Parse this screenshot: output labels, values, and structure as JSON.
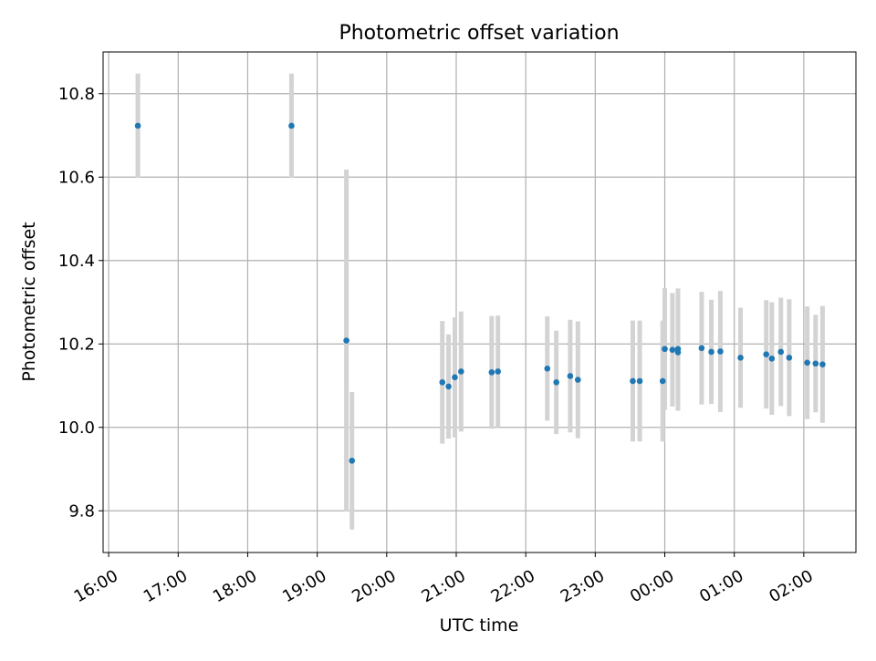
{
  "chart_data": {
    "type": "scatter",
    "title": "Photometric offset variation",
    "xlabel": "UTC time",
    "ylabel": "Photometric offset",
    "ylim": [
      9.7,
      10.9
    ],
    "xlim": [
      -0.08,
      10.75
    ],
    "x_unit": "hours after 16:00 UTC",
    "grid": true,
    "x_ticks": [
      {
        "x": 0,
        "label": "16:00"
      },
      {
        "x": 1,
        "label": "17:00"
      },
      {
        "x": 2,
        "label": "18:00"
      },
      {
        "x": 3,
        "label": "19:00"
      },
      {
        "x": 4,
        "label": "20:00"
      },
      {
        "x": 5,
        "label": "21:00"
      },
      {
        "x": 6,
        "label": "22:00"
      },
      {
        "x": 7,
        "label": "23:00"
      },
      {
        "x": 8,
        "label": "00:00"
      },
      {
        "x": 9,
        "label": "01:00"
      },
      {
        "x": 10,
        "label": "02:00"
      }
    ],
    "y_ticks": [
      {
        "y": 9.8,
        "label": "9.8"
      },
      {
        "y": 10.0,
        "label": "10.0"
      },
      {
        "y": 10.2,
        "label": "10.2"
      },
      {
        "y": 10.4,
        "label": "10.4"
      },
      {
        "y": 10.6,
        "label": "10.6"
      },
      {
        "y": 10.8,
        "label": "10.8"
      }
    ],
    "point_color": "#1f77b4",
    "errorbar_color": "#d3d3d3",
    "points": [
      {
        "x": 0.42,
        "y": 10.723,
        "err": 0.125
      },
      {
        "x": 2.63,
        "y": 10.723,
        "err": 0.125
      },
      {
        "x": 3.42,
        "y": 10.208,
        "err": 0.41
      },
      {
        "x": 3.5,
        "y": 9.92,
        "err": 0.165
      },
      {
        "x": 4.8,
        "y": 10.108,
        "err": 0.147
      },
      {
        "x": 4.89,
        "y": 10.098,
        "err": 0.125
      },
      {
        "x": 4.98,
        "y": 10.12,
        "err": 0.144
      },
      {
        "x": 5.07,
        "y": 10.134,
        "err": 0.144
      },
      {
        "x": 5.51,
        "y": 10.132,
        "err": 0.135
      },
      {
        "x": 5.6,
        "y": 10.134,
        "err": 0.134
      },
      {
        "x": 6.31,
        "y": 10.141,
        "err": 0.125
      },
      {
        "x": 6.44,
        "y": 10.108,
        "err": 0.124
      },
      {
        "x": 6.64,
        "y": 10.123,
        "err": 0.135
      },
      {
        "x": 6.75,
        "y": 10.114,
        "err": 0.14
      },
      {
        "x": 7.54,
        "y": 10.111,
        "err": 0.145
      },
      {
        "x": 7.64,
        "y": 10.111,
        "err": 0.145
      },
      {
        "x": 7.97,
        "y": 10.111,
        "err": 0.145
      },
      {
        "x": 8.0,
        "y": 10.188,
        "err": 0.146
      },
      {
        "x": 8.11,
        "y": 10.186,
        "err": 0.136
      },
      {
        "x": 8.19,
        "y": 10.18,
        "err": 0.14
      },
      {
        "x": 8.19,
        "y": 10.188,
        "err": 0.145
      },
      {
        "x": 8.53,
        "y": 10.19,
        "err": 0.135
      },
      {
        "x": 8.67,
        "y": 10.181,
        "err": 0.125
      },
      {
        "x": 8.8,
        "y": 10.182,
        "err": 0.145
      },
      {
        "x": 9.09,
        "y": 10.167,
        "err": 0.12
      },
      {
        "x": 9.46,
        "y": 10.175,
        "err": 0.13
      },
      {
        "x": 9.54,
        "y": 10.165,
        "err": 0.135
      },
      {
        "x": 9.67,
        "y": 10.181,
        "err": 0.13
      },
      {
        "x": 9.79,
        "y": 10.167,
        "err": 0.14
      },
      {
        "x": 10.05,
        "y": 10.155,
        "err": 0.135
      },
      {
        "x": 10.17,
        "y": 10.153,
        "err": 0.117
      },
      {
        "x": 10.27,
        "y": 10.151,
        "err": 0.14
      }
    ]
  }
}
